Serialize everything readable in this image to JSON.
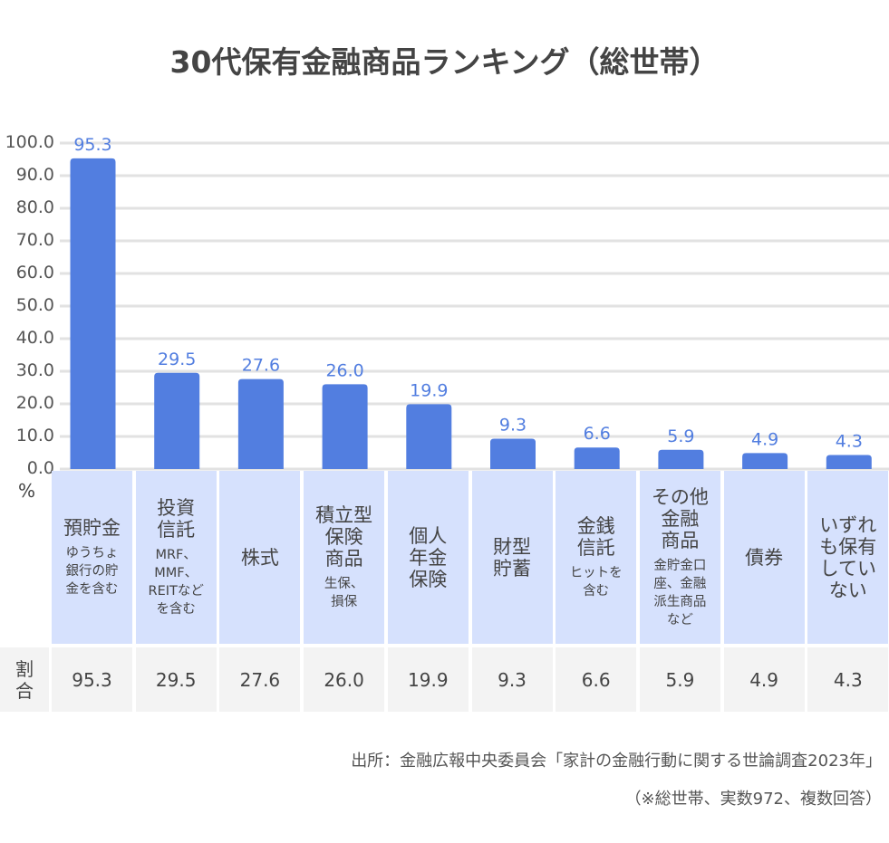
{
  "chart_data": {
    "type": "bar",
    "title": "30代保有金融商品ランキング（総世帯）",
    "unit_label": "%",
    "ylim": [
      0,
      100
    ],
    "yticks": [
      "0.0",
      "10.0",
      "20.0",
      "30.0",
      "40.0",
      "50.0",
      "60.0",
      "70.0",
      "80.0",
      "90.0",
      "100.0"
    ],
    "grid": true,
    "bar_color": "#527ee0",
    "categories": [
      {
        "main": [
          "預貯金"
        ],
        "sub": [
          "ゆうちょ",
          "銀行の貯",
          "金を含む"
        ]
      },
      {
        "main": [
          "投資",
          "信託"
        ],
        "sub": [
          "MRF、",
          "MMF、",
          "REITなど",
          "を含む"
        ]
      },
      {
        "main": [
          "株式"
        ],
        "sub": []
      },
      {
        "main": [
          "積立型",
          "保険",
          "商品"
        ],
        "sub": [
          "生保、",
          "損保"
        ]
      },
      {
        "main": [
          "個人",
          "年金",
          "保険"
        ],
        "sub": []
      },
      {
        "main": [
          "財型",
          "貯蓄"
        ],
        "sub": []
      },
      {
        "main": [
          "金銭",
          "信託"
        ],
        "sub": [
          "ヒットを",
          "含む"
        ]
      },
      {
        "main": [
          "その他",
          "金融",
          "商品"
        ],
        "sub": [
          "金貯金口",
          "座、金融",
          "派生商品",
          "など"
        ]
      },
      {
        "main": [
          "債券"
        ],
        "sub": []
      },
      {
        "main": [
          "いずれ",
          "も保有",
          "してい",
          "ない"
        ],
        "sub": []
      }
    ],
    "values": [
      95.3,
      29.5,
      27.6,
      26.0,
      19.9,
      9.3,
      6.6,
      5.9,
      4.9,
      4.3
    ],
    "value_labels": [
      "95.3",
      "29.5",
      "27.6",
      "26.0",
      "19.9",
      "9.3",
      "6.6",
      "5.9",
      "4.9",
      "4.3"
    ],
    "table_row_label": [
      "割",
      "合"
    ]
  },
  "notes": {
    "source": "出所：金融広報中央委員会「家計の金融行動に関する世論調査2023年」",
    "remark": "（※総世帯、実数972、複数回答）"
  }
}
